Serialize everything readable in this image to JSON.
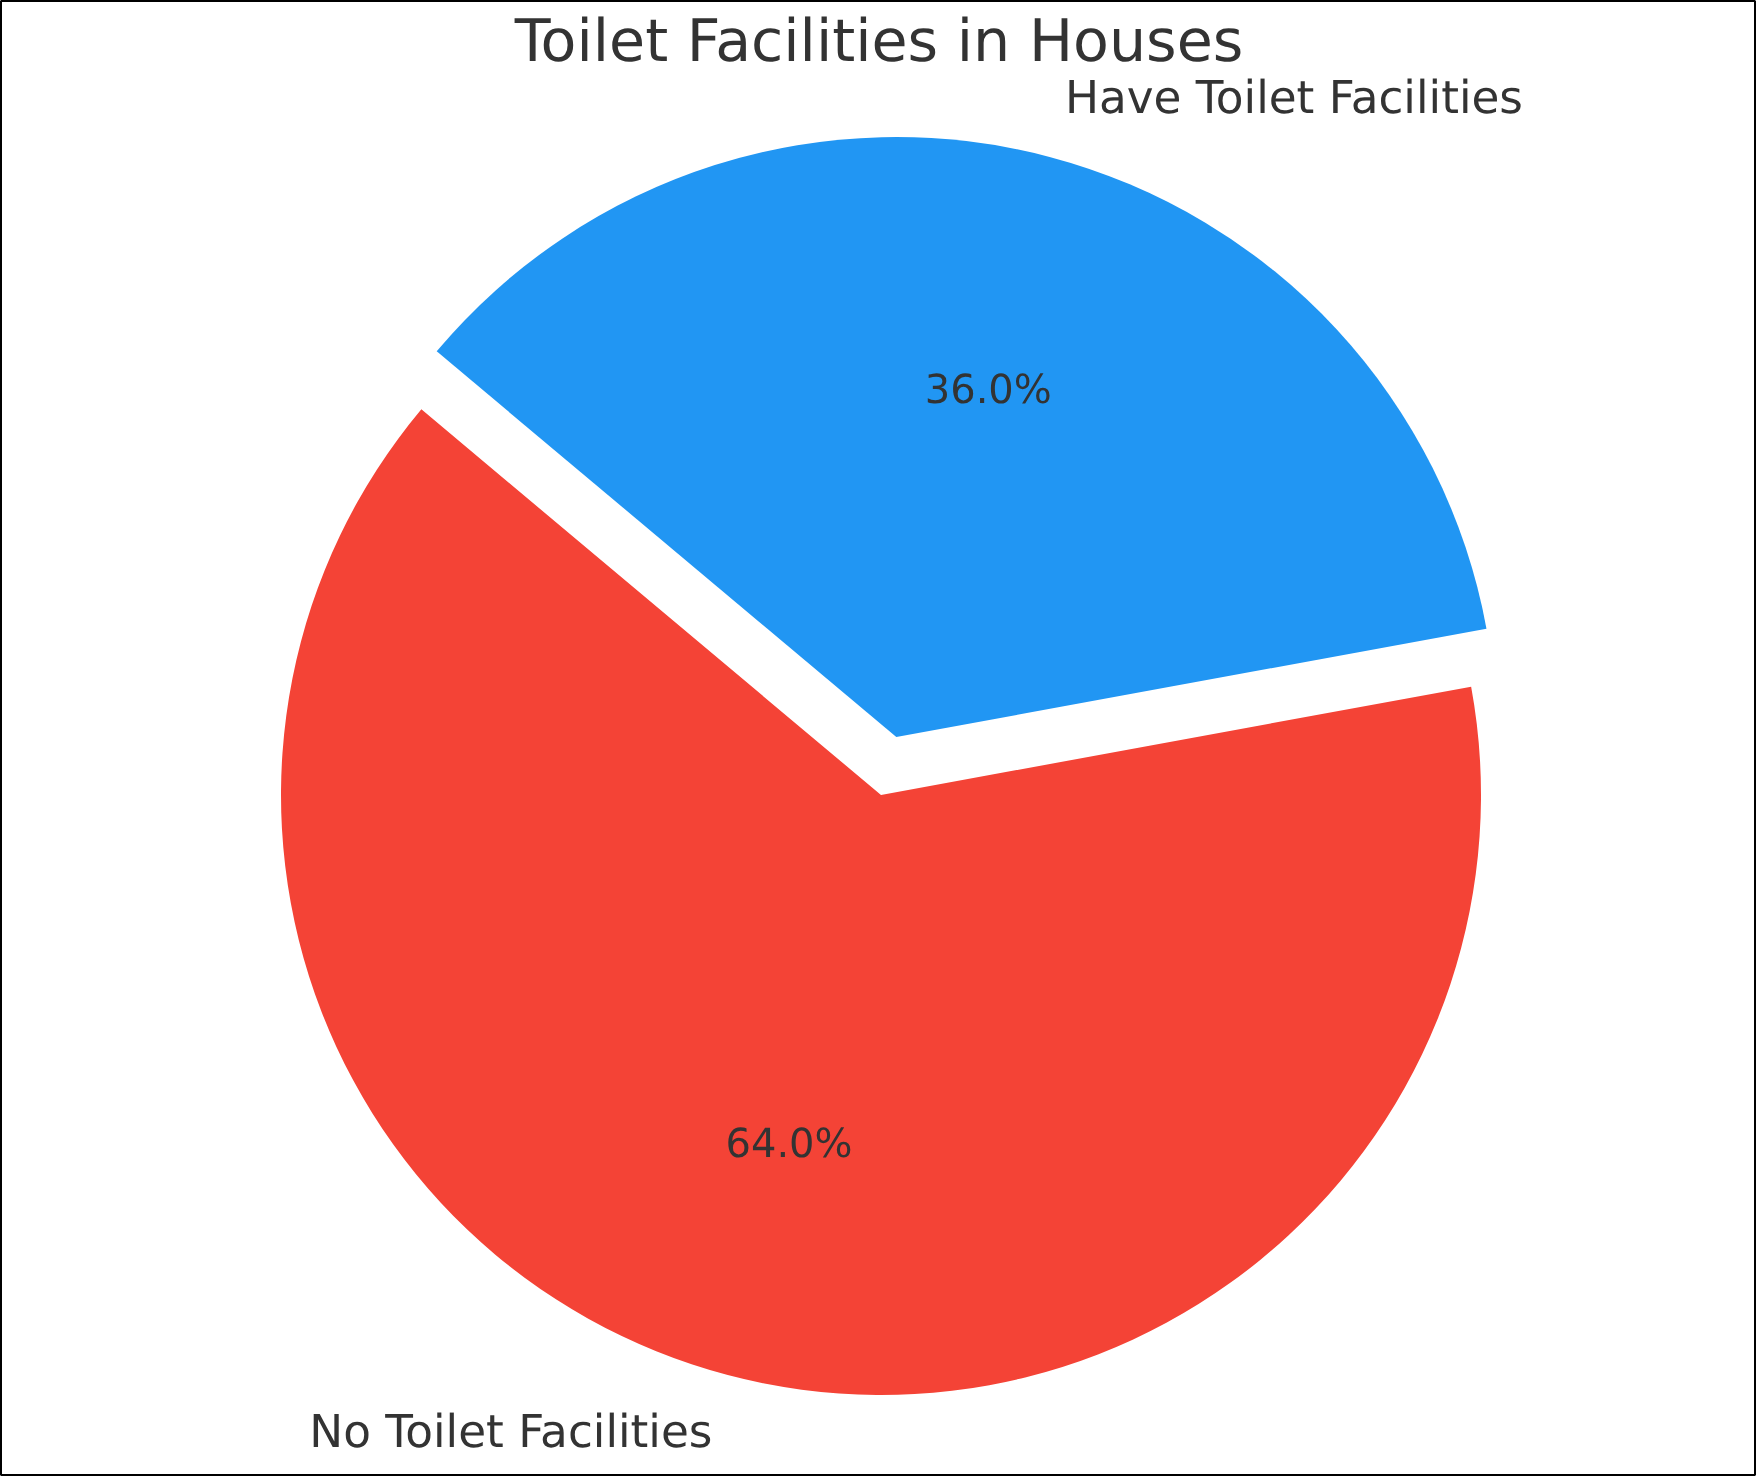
{
  "chart_data": {
    "type": "pie",
    "title": "Toilet Facilities in Houses",
    "categories": [
      "Have Toilet Facilities",
      "No Toilet Facilities"
    ],
    "values": [
      36,
      64
    ],
    "colors": [
      "#2196f3",
      "#f44336"
    ],
    "value_labels": [
      "36.0%",
      "64.0%"
    ]
  }
}
